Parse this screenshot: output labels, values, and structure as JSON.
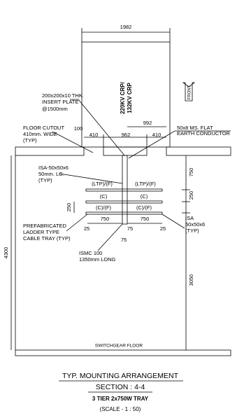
{
  "panel": {
    "width": "1982",
    "label": [
      "220KV CRP/",
      "132KV CRP"
    ],
    "front": "FRONT"
  },
  "floor": {
    "cutout": [
      "FLOOR CUTOUT",
      "410mm. WIDE",
      "(TYP)"
    ],
    "gap": "100",
    "span": "992",
    "left": "410",
    "middle": "962",
    "right": "410"
  },
  "notes": {
    "insert_plate": [
      "200x200x10 THK.",
      "INSERT PLATE",
      "@1500mm"
    ],
    "earth": [
      "50x8 MS. FLAT",
      "EARTH CONDUCTOR"
    ],
    "isa_top": [
      "ISA-50x50x6",
      "50mm. LG.",
      "(TYP)"
    ],
    "prefab": [
      "PREFABRICATED",
      "LADDER TYPE",
      "CABLE TRAY (TYP)"
    ],
    "isa_right": [
      "ISA",
      "50x50x6",
      "(TYP)"
    ],
    "ismc": [
      "ISMC 100",
      "1350mm LONG"
    ]
  },
  "trays": {
    "tier1": [
      "(LTP)/(F)",
      "(LTP)/(F)"
    ],
    "tier2": [
      "(C)",
      "(C)"
    ],
    "tier3": [
      "(C)/(F)",
      "(C)/(F)"
    ],
    "width": [
      "750",
      "750"
    ],
    "edges": [
      "25",
      "75",
      "75",
      "25"
    ]
  },
  "levels": {
    "top": "750",
    "tier_gap": "250",
    "tier_gap_left": "250",
    "bottom": "3050",
    "total": "4300"
  },
  "floor_label": "SWITCHGEAR FLOOR",
  "title": {
    "line1": "TYP. MOUNTING ARRANGEMENT",
    "line2": "SECTION : 4-4",
    "line3": "3 TIER 2x750W TRAY",
    "line4": "(SCALE - 1 : 50)"
  }
}
